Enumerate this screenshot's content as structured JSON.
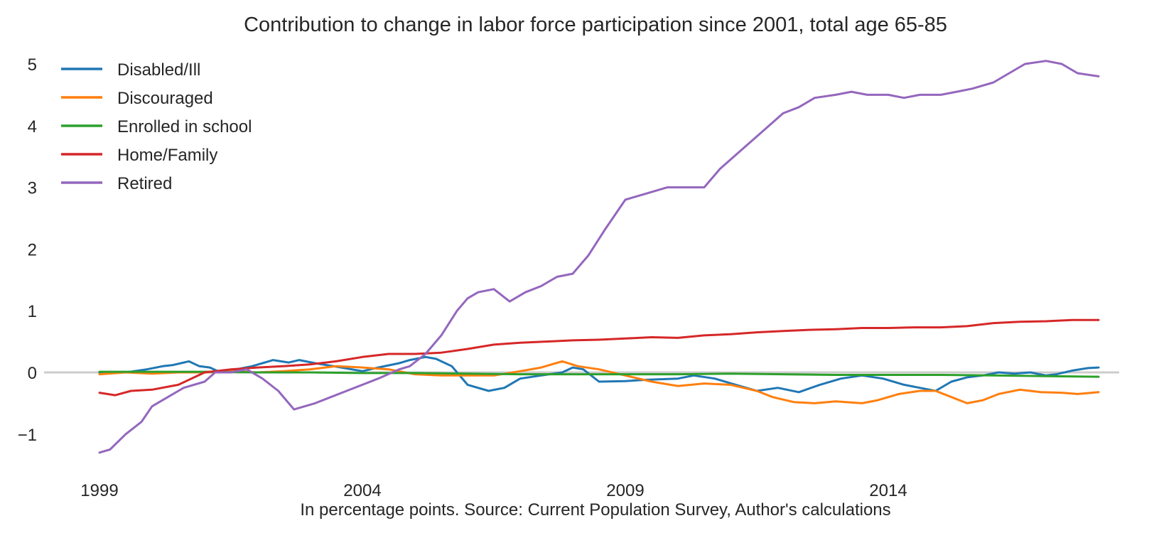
{
  "chart_data": {
    "type": "line",
    "title": "Contribution to change in labor force participation since 2001, total age 65-85",
    "xlabel": "In percentage points. Source: Current Population Survey, Author's calculations",
    "ylabel": "",
    "xlim": [
      1999,
      2018
    ],
    "ylim": [
      -1.6,
      5.3
    ],
    "x_ticks": [
      1999,
      2004,
      2009,
      2014
    ],
    "y_ticks": [
      -1,
      0,
      1,
      2,
      3,
      4,
      5
    ],
    "y_tick_labels": [
      "−1",
      "0",
      "1",
      "2",
      "3",
      "4",
      "5"
    ],
    "grid": false,
    "zero_line": true,
    "legend_position": "top-left",
    "series": [
      {
        "name": "Disabled/Ill",
        "color": "#1f77b4",
        "x": [
          1999,
          1999.5,
          1999.9,
          2000.2,
          2000.4,
          2000.7,
          2000.9,
          2001.1,
          2001.3,
          2001.6,
          2001.9,
          2002.1,
          2002.3,
          2002.6,
          2002.8,
          2003.1,
          2003.6,
          2004,
          2004.3,
          2004.7,
          2004.9,
          2005.2,
          2005.4,
          2005.7,
          2006,
          2006.4,
          2006.7,
          2007,
          2007.4,
          2007.8,
          2008,
          2008.2,
          2008.5,
          2009,
          2009.4,
          2010,
          2010.3,
          2010.7,
          2011.1,
          2011.5,
          2011.9,
          2012.3,
          2012.7,
          2013.1,
          2013.5,
          2013.9,
          2014.3,
          2014.6,
          2014.9,
          2015.2,
          2015.5,
          2015.8,
          2016.1,
          2016.4,
          2016.7,
          2017,
          2017.2,
          2017.5,
          2017.8,
          2018
        ],
        "values": [
          0.0,
          0.0,
          0.05,
          0.1,
          0.12,
          0.18,
          0.1,
          0.08,
          0.0,
          0.05,
          0.1,
          0.15,
          0.2,
          0.16,
          0.2,
          0.15,
          0.08,
          0.02,
          0.08,
          0.15,
          0.2,
          0.25,
          0.22,
          0.1,
          -0.2,
          -0.3,
          -0.25,
          -0.1,
          -0.05,
          0.0,
          0.08,
          0.05,
          -0.15,
          -0.14,
          -0.12,
          -0.1,
          -0.05,
          -0.1,
          -0.2,
          -0.3,
          -0.25,
          -0.32,
          -0.2,
          -0.1,
          -0.05,
          -0.1,
          -0.2,
          -0.25,
          -0.3,
          -0.15,
          -0.08,
          -0.05,
          0.0,
          -0.02,
          0.0,
          -0.05,
          -0.03,
          0.03,
          0.07,
          0.08
        ]
      },
      {
        "name": "Discouraged",
        "color": "#ff7f0e",
        "x": [
          1999,
          1999.5,
          2000,
          2000.5,
          2001,
          2001.5,
          2002,
          2002.5,
          2003,
          2003.5,
          2004,
          2004.5,
          2005,
          2005.5,
          2006,
          2006.5,
          2007,
          2007.4,
          2007.8,
          2008.1,
          2008.5,
          2009,
          2009.5,
          2010,
          2010.5,
          2011,
          2011.5,
          2011.8,
          2012.2,
          2012.6,
          2013,
          2013.5,
          2013.8,
          2014.2,
          2014.6,
          2014.9,
          2015.2,
          2015.5,
          2015.8,
          2016.1,
          2016.5,
          2016.9,
          2017.3,
          2017.6,
          2018
        ],
        "values": [
          -0.03,
          0.0,
          -0.02,
          0.0,
          0.0,
          0.02,
          0.0,
          0.02,
          0.05,
          0.1,
          0.08,
          0.05,
          -0.03,
          -0.05,
          -0.05,
          -0.05,
          0.02,
          0.08,
          0.18,
          0.1,
          0.05,
          -0.05,
          -0.15,
          -0.22,
          -0.18,
          -0.2,
          -0.3,
          -0.4,
          -0.48,
          -0.5,
          -0.47,
          -0.5,
          -0.45,
          -0.35,
          -0.3,
          -0.3,
          -0.4,
          -0.5,
          -0.45,
          -0.35,
          -0.28,
          -0.32,
          -0.33,
          -0.35,
          -0.32
        ]
      },
      {
        "name": "Enrolled in school",
        "color": "#2ca02c",
        "x": [
          1999,
          2000,
          2001,
          2002,
          2003,
          2004,
          2005,
          2006,
          2007,
          2008,
          2009,
          2010,
          2011,
          2012,
          2013,
          2014,
          2015,
          2016,
          2017,
          2018
        ],
        "values": [
          0.01,
          0.01,
          0.01,
          0.0,
          0.0,
          -0.01,
          -0.01,
          -0.02,
          -0.03,
          -0.03,
          -0.03,
          -0.03,
          -0.02,
          -0.03,
          -0.04,
          -0.04,
          -0.04,
          -0.05,
          -0.06,
          -0.07
        ]
      },
      {
        "name": "Home/Family",
        "color": "#d62728",
        "x": [
          1999,
          1999.3,
          1999.6,
          2000,
          2000.5,
          2001,
          2001.5,
          2002,
          2002.5,
          2003,
          2003.5,
          2004,
          2004.5,
          2005,
          2005.5,
          2006,
          2006.5,
          2007,
          2007.5,
          2008,
          2008.5,
          2009,
          2009.5,
          2010,
          2010.5,
          2011,
          2011.5,
          2012,
          2012.5,
          2013,
          2013.5,
          2014,
          2014.5,
          2015,
          2015.5,
          2016,
          2016.5,
          2017,
          2017.5,
          2018
        ],
        "values": [
          -0.33,
          -0.37,
          -0.3,
          -0.28,
          -0.2,
          0.0,
          0.05,
          0.08,
          0.1,
          0.13,
          0.18,
          0.25,
          0.3,
          0.3,
          0.32,
          0.38,
          0.45,
          0.48,
          0.5,
          0.52,
          0.53,
          0.55,
          0.57,
          0.56,
          0.6,
          0.62,
          0.65,
          0.67,
          0.69,
          0.7,
          0.72,
          0.72,
          0.73,
          0.73,
          0.75,
          0.8,
          0.82,
          0.83,
          0.85,
          0.85
        ]
      },
      {
        "name": "Retired",
        "color": "#9467bd",
        "x": [
          1999,
          1999.2,
          1999.5,
          1999.8,
          2000,
          2000.3,
          2000.6,
          2001,
          2001.2,
          2001.5,
          2001.8,
          2002.1,
          2002.4,
          2002.7,
          2003.1,
          2003.4,
          2003.7,
          2004,
          2004.3,
          2004.7,
          2004.9,
          2005.2,
          2005.5,
          2005.8,
          2006,
          2006.2,
          2006.5,
          2006.8,
          2007.1,
          2007.4,
          2007.7,
          2008,
          2008.3,
          2008.6,
          2009,
          2009.4,
          2009.8,
          2010.1,
          2010.5,
          2010.8,
          2011.2,
          2011.6,
          2012,
          2012.3,
          2012.6,
          2013,
          2013.3,
          2013.6,
          2014,
          2014.3,
          2014.6,
          2015,
          2015.3,
          2015.6,
          2016,
          2016.3,
          2016.6,
          2017,
          2017.3,
          2017.6,
          2018
        ],
        "values": [
          -1.3,
          -1.25,
          -1.0,
          -0.8,
          -0.55,
          -0.4,
          -0.25,
          -0.15,
          0.0,
          0.0,
          0.05,
          -0.1,
          -0.3,
          -0.6,
          -0.5,
          -0.4,
          -0.3,
          -0.2,
          -0.1,
          0.05,
          0.1,
          0.3,
          0.6,
          1.0,
          1.2,
          1.3,
          1.35,
          1.15,
          1.3,
          1.4,
          1.55,
          1.6,
          1.9,
          2.3,
          2.8,
          2.9,
          3.0,
          3.0,
          3.0,
          3.3,
          3.6,
          3.9,
          4.2,
          4.3,
          4.45,
          4.5,
          4.55,
          4.5,
          4.5,
          4.45,
          4.5,
          4.5,
          4.55,
          4.6,
          4.7,
          4.85,
          5.0,
          5.05,
          5.0,
          4.85,
          4.8
        ]
      }
    ]
  }
}
